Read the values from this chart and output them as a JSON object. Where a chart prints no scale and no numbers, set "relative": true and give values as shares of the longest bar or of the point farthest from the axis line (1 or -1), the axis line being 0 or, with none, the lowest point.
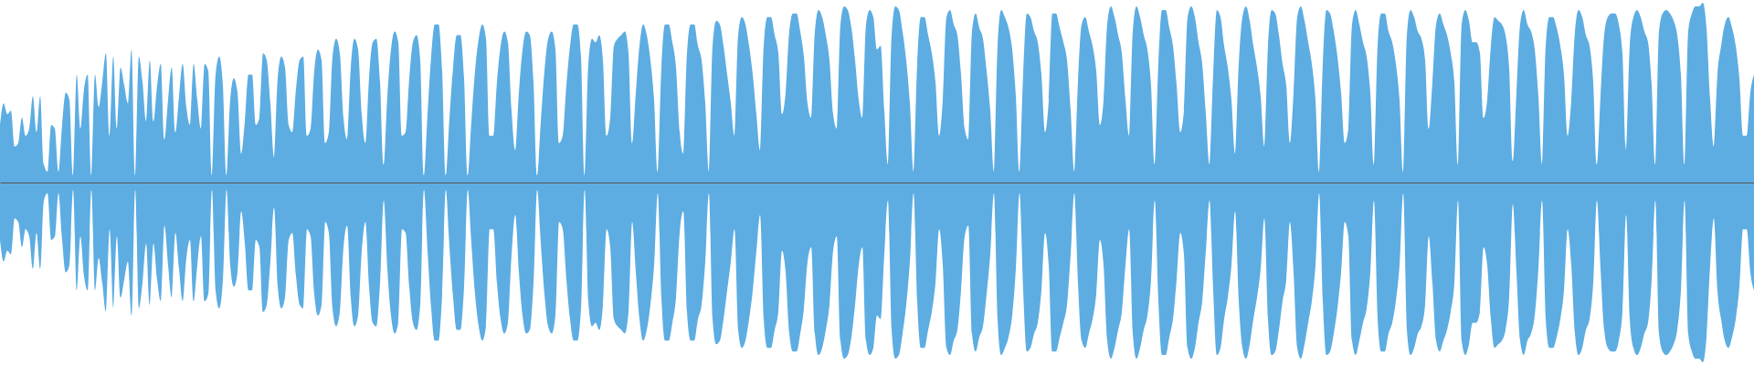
{
  "chart_data": {
    "type": "area",
    "relative": true,
    "categories": [
      null,
      null,
      null,
      null,
      null,
      null,
      null,
      null,
      null,
      null,
      null,
      null,
      null,
      null,
      null,
      null,
      null,
      null,
      null,
      null,
      null,
      null,
      null,
      null,
      null,
      null,
      null,
      null,
      null,
      null,
      null,
      null,
      null,
      null,
      null,
      null,
      null,
      null,
      null,
      null,
      null,
      null,
      null,
      null,
      null,
      null,
      null,
      null,
      null,
      null,
      null,
      null,
      null,
      null,
      null,
      null,
      null,
      null,
      null,
      null,
      null,
      null,
      null,
      null,
      null,
      null,
      null,
      null,
      null,
      null,
      null,
      null,
      null,
      null,
      null,
      null,
      null,
      null,
      null,
      null,
      null,
      null,
      null,
      null,
      null,
      null,
      null,
      null,
      null,
      null,
      null,
      null,
      null,
      null,
      null,
      null,
      null,
      null,
      null,
      null,
      null,
      null,
      null,
      null,
      null,
      null,
      null,
      null,
      null,
      null,
      null,
      null,
      null,
      null,
      null,
      null,
      null,
      null,
      null,
      null,
      null,
      null,
      null,
      null,
      null,
      null,
      null,
      null,
      null,
      null,
      null,
      null,
      null,
      null,
      null,
      null,
      null,
      null,
      null,
      null,
      null,
      null,
      null,
      null,
      null,
      null,
      null,
      null,
      null,
      null,
      null,
      null,
      null,
      null,
      null,
      null,
      null,
      null,
      null,
      null,
      null,
      null,
      null,
      null,
      null,
      null,
      null,
      null,
      null,
      null,
      null,
      null,
      null,
      null,
      null,
      null,
      null,
      null,
      null,
      null,
      null,
      null,
      null,
      null,
      null,
      null,
      null,
      null,
      null,
      null,
      null,
      null,
      null,
      null,
      null,
      null,
      null,
      null,
      null,
      null,
      null,
      null,
      null,
      null,
      null,
      null,
      null,
      null,
      null,
      null,
      null,
      null,
      null,
      null,
      null,
      null,
      null,
      null,
      null,
      null,
      null,
      null,
      null,
      null,
      null,
      null,
      null,
      null,
      null,
      null,
      null,
      null,
      null,
      null,
      null,
      null,
      null,
      null,
      null,
      null,
      null,
      null,
      null,
      null,
      null,
      null,
      null,
      null,
      null,
      null,
      null,
      null,
      null,
      null,
      null,
      null,
      null,
      null,
      null,
      null,
      null,
      null,
      null,
      null,
      null,
      null,
      null,
      null,
      null,
      null,
      null,
      null,
      null,
      null,
      null,
      null,
      null,
      null,
      null,
      null,
      null,
      null,
      null,
      null,
      null,
      null,
      null,
      null,
      null,
      null,
      null,
      null,
      null,
      null,
      null,
      null,
      null,
      null,
      null,
      null,
      null,
      null,
      null,
      null,
      null,
      null,
      null,
      null,
      null,
      null,
      null,
      null,
      null,
      null,
      null,
      null,
      null,
      null,
      null,
      null,
      null,
      null,
      null,
      null,
      null,
      null,
      null,
      null,
      null,
      null,
      null,
      null,
      null,
      null,
      null,
      null,
      null,
      null,
      null,
      null,
      null,
      null,
      null,
      null,
      null,
      null,
      null,
      null,
      null,
      null,
      null,
      null,
      null,
      null,
      null,
      null,
      null,
      null,
      null,
      null,
      null,
      null,
      null,
      null,
      null,
      null,
      null,
      null,
      null,
      null,
      null,
      null,
      null,
      null,
      null,
      null,
      null,
      null,
      null,
      null,
      null,
      null,
      null,
      null,
      null,
      null,
      null,
      null,
      null,
      null,
      null,
      null,
      null,
      null,
      null,
      null,
      null,
      null,
      null,
      null,
      null,
      null,
      null,
      null,
      null,
      null,
      null,
      null,
      null,
      null,
      null,
      null,
      null,
      null,
      null,
      null,
      null,
      null,
      null,
      null,
      null,
      null,
      null,
      null,
      null,
      null,
      null,
      null,
      null,
      null,
      null,
      null,
      null,
      null,
      null,
      null,
      null,
      null,
      null,
      null,
      null,
      null,
      null,
      null,
      null,
      null,
      null,
      null,
      null,
      null,
      null,
      null,
      null,
      null,
      null,
      null,
      null,
      null,
      null,
      null,
      null,
      null,
      null,
      null,
      null,
      null,
      null,
      null,
      null,
      null,
      null,
      null,
      null,
      null,
      null,
      null,
      null,
      null,
      null,
      null,
      null
    ],
    "series": [
      {
        "color": "#5dade2",
        "values": [
          0.32,
          0.44,
          0.38,
          0.4,
          0.2,
          0.22,
          0.36,
          0.26,
          0.3,
          0.48,
          0.28,
          0.48,
          0.1,
          0.06,
          0.32,
          0.3,
          0.06,
          0.32,
          0.5,
          0.46,
          0.04,
          0.6,
          0.3,
          0.52,
          0.6,
          0.04,
          0.6,
          0.42,
          0.56,
          0.72,
          0.26,
          0.7,
          0.3,
          0.64,
          0.54,
          0.44,
          0.74,
          0.04,
          0.7,
          0.56,
          0.34,
          0.68,
          0.34,
          0.54,
          0.66,
          0.24,
          0.46,
          0.64,
          0.28,
          0.48,
          0.66,
          0.42,
          0.32,
          0.66,
          0.46,
          0.3,
          0.66,
          0.62,
          0.04,
          0.6,
          0.7,
          0.54,
          0.04,
          0.46,
          0.58,
          0.5,
          0.16,
          0.34,
          0.6,
          0.6,
          0.32,
          0.36,
          0.72,
          0.68,
          0.44,
          0.14,
          0.58,
          0.7,
          0.64,
          0.32,
          0.28,
          0.52,
          0.68,
          0.7,
          0.26,
          0.3,
          0.62,
          0.74,
          0.68,
          0.22,
          0.28,
          0.7,
          0.8,
          0.72,
          0.36,
          0.24,
          0.64,
          0.8,
          0.74,
          0.38,
          0.22,
          0.58,
          0.78,
          0.8,
          0.56,
          0.1,
          0.48,
          0.74,
          0.84,
          0.78,
          0.26,
          0.28,
          0.58,
          0.78,
          0.82,
          0.68,
          0.04,
          0.38,
          0.7,
          0.88,
          0.88,
          0.62,
          0.04,
          0.36,
          0.64,
          0.82,
          0.82,
          0.58,
          0.04,
          0.34,
          0.62,
          0.8,
          0.88,
          0.8,
          0.26,
          0.26,
          0.56,
          0.76,
          0.84,
          0.78,
          0.4,
          0.18,
          0.5,
          0.74,
          0.84,
          0.82,
          0.56,
          0.04,
          0.34,
          0.62,
          0.8,
          0.84,
          0.74,
          0.22,
          0.26,
          0.54,
          0.76,
          0.88,
          0.88,
          0.7,
          0.04,
          0.66,
          0.8,
          0.78,
          0.82,
          0.68,
          0.26,
          0.36,
          0.76,
          0.8,
          0.82,
          0.84,
          0.72,
          0.22,
          0.5,
          0.76,
          0.88,
          0.82,
          0.68,
          0.46,
          0.06,
          0.64,
          0.88,
          0.88,
          0.78,
          0.64,
          0.28,
          0.16,
          0.72,
          0.88,
          0.88,
          0.76,
          0.68,
          0.44,
          0.06,
          0.76,
          0.9,
          0.88,
          0.76,
          0.6,
          0.44,
          0.26,
          0.82,
          0.92,
          0.88,
          0.76,
          0.6,
          0.38,
          0.18,
          0.76,
          0.92,
          0.92,
          0.82,
          0.72,
          0.38,
          0.5,
          0.84,
          0.94,
          0.94,
          0.84,
          0.7,
          0.44,
          0.36,
          0.84,
          0.96,
          0.92,
          0.82,
          0.68,
          0.38,
          0.3,
          0.88,
          0.98,
          0.96,
          0.86,
          0.68,
          0.46,
          0.36,
          0.88,
          0.96,
          0.92,
          0.74,
          0.76,
          0.4,
          0.1,
          0.82,
          0.98,
          0.96,
          0.84,
          0.68,
          0.44,
          0.06,
          0.66,
          0.92,
          0.92,
          0.82,
          0.72,
          0.56,
          0.26,
          0.46,
          0.92,
          0.96,
          0.88,
          0.82,
          0.6,
          0.3,
          0.24,
          0.84,
          0.94,
          0.86,
          0.8,
          0.62,
          0.4,
          0.06,
          0.76,
          0.96,
          0.92,
          0.86,
          0.74,
          0.48,
          0.06,
          0.6,
          0.94,
          0.92,
          0.84,
          0.78,
          0.6,
          0.28,
          0.46,
          0.94,
          0.94,
          0.86,
          0.78,
          0.68,
          0.4,
          0.06,
          0.56,
          0.88,
          0.92,
          0.84,
          0.76,
          0.62,
          0.32,
          0.46,
          0.88,
          0.98,
          0.92,
          0.82,
          0.72,
          0.46,
          0.26,
          0.84,
          0.98,
          0.92,
          0.82,
          0.74,
          0.54,
          0.1,
          0.66,
          0.96,
          0.96,
          0.86,
          0.76,
          0.54,
          0.28,
          0.4,
          0.92,
          0.98,
          0.92,
          0.78,
          0.66,
          0.38,
          0.1,
          0.6,
          0.96,
          0.92,
          0.76,
          0.64,
          0.46,
          0.16,
          0.66,
          0.92,
          0.98,
          0.9,
          0.76,
          0.64,
          0.48,
          0.2,
          0.76,
          0.96,
          0.94,
          0.82,
          0.66,
          0.54,
          0.22,
          0.5,
          0.92,
          0.98,
          0.9,
          0.78,
          0.66,
          0.46,
          0.06,
          0.66,
          0.96,
          0.94,
          0.84,
          0.7,
          0.5,
          0.22,
          0.3,
          0.88,
          0.96,
          0.88,
          0.78,
          0.7,
          0.5,
          0.1,
          0.76,
          0.94,
          0.94,
          0.84,
          0.78,
          0.66,
          0.46,
          0.06,
          0.82,
          0.96,
          0.92,
          0.84,
          0.8,
          0.68,
          0.3,
          0.56,
          0.88,
          0.94,
          0.88,
          0.82,
          0.72,
          0.56,
          0.1,
          0.88,
          0.96,
          0.9,
          0.78,
          0.78,
          0.72,
          0.36,
          0.46,
          0.76,
          0.92,
          0.9,
          0.88,
          0.82,
          0.64,
          0.12,
          0.5,
          0.88,
          0.96,
          0.88,
          0.84,
          0.74,
          0.48,
          0.1,
          0.76,
          0.92,
          0.92,
          0.86,
          0.76,
          0.6,
          0.26,
          0.46,
          0.84,
          0.96,
          0.92,
          0.82,
          0.76,
          0.56,
          0.1,
          0.48,
          0.82,
          0.92,
          0.94,
          0.94,
          0.88,
          0.72,
          0.18,
          0.76,
          0.92,
          0.96,
          0.92,
          0.84,
          0.78,
          0.54,
          0.1,
          0.84,
          0.94,
          0.96,
          0.94,
          0.9,
          0.82,
          0.6,
          0.1,
          0.84,
          0.94,
          0.98,
          0.98,
          1,
          0.86,
          0.46,
          0.2,
          0.6,
          0.76,
          0.88,
          0.92,
          0.86,
          0.76,
          0.58,
          0.26,
          0.26,
          0.5,
          0.6
        ]
      },
      {
        "color": "#5dade2",
        "values": [
          -0.32,
          -0.44,
          -0.38,
          -0.4,
          -0.2,
          -0.22,
          -0.36,
          -0.26,
          -0.3,
          -0.48,
          -0.28,
          -0.48,
          -0.1,
          -0.06,
          -0.32,
          -0.3,
          -0.06,
          -0.32,
          -0.5,
          -0.46,
          -0.04,
          -0.6,
          -0.3,
          -0.52,
          -0.6,
          -0.04,
          -0.6,
          -0.42,
          -0.56,
          -0.72,
          -0.26,
          -0.7,
          -0.3,
          -0.64,
          -0.54,
          -0.44,
          -0.74,
          -0.04,
          -0.7,
          -0.56,
          -0.34,
          -0.68,
          -0.34,
          -0.54,
          -0.66,
          -0.24,
          -0.46,
          -0.64,
          -0.28,
          -0.48,
          -0.66,
          -0.42,
          -0.32,
          -0.66,
          -0.46,
          -0.3,
          -0.66,
          -0.62,
          -0.04,
          -0.6,
          -0.7,
          -0.54,
          -0.04,
          -0.46,
          -0.58,
          -0.5,
          -0.16,
          -0.34,
          -0.6,
          -0.6,
          -0.32,
          -0.36,
          -0.72,
          -0.68,
          -0.44,
          -0.14,
          -0.58,
          -0.7,
          -0.64,
          -0.32,
          -0.28,
          -0.52,
          -0.68,
          -0.7,
          -0.26,
          -0.3,
          -0.62,
          -0.74,
          -0.68,
          -0.22,
          -0.28,
          -0.7,
          -0.8,
          -0.72,
          -0.36,
          -0.24,
          -0.64,
          -0.8,
          -0.74,
          -0.38,
          -0.22,
          -0.58,
          -0.78,
          -0.8,
          -0.56,
          -0.1,
          -0.48,
          -0.74,
          -0.84,
          -0.78,
          -0.26,
          -0.28,
          -0.58,
          -0.78,
          -0.82,
          -0.68,
          -0.04,
          -0.38,
          -0.7,
          -0.88,
          -0.88,
          -0.62,
          -0.04,
          -0.36,
          -0.64,
          -0.82,
          -0.82,
          -0.58,
          -0.04,
          -0.34,
          -0.62,
          -0.8,
          -0.88,
          -0.8,
          -0.26,
          -0.26,
          -0.56,
          -0.76,
          -0.84,
          -0.78,
          -0.4,
          -0.18,
          -0.5,
          -0.74,
          -0.84,
          -0.82,
          -0.56,
          -0.04,
          -0.34,
          -0.62,
          -0.8,
          -0.84,
          -0.74,
          -0.22,
          -0.26,
          -0.54,
          -0.76,
          -0.88,
          -0.88,
          -0.7,
          -0.04,
          -0.66,
          -0.8,
          -0.78,
          -0.82,
          -0.68,
          -0.26,
          -0.36,
          -0.76,
          -0.8,
          -0.82,
          -0.84,
          -0.72,
          -0.22,
          -0.5,
          -0.76,
          -0.88,
          -0.82,
          -0.68,
          -0.46,
          -0.06,
          -0.64,
          -0.88,
          -0.88,
          -0.78,
          -0.64,
          -0.28,
          -0.16,
          -0.72,
          -0.88,
          -0.88,
          -0.76,
          -0.68,
          -0.44,
          -0.06,
          -0.76,
          -0.9,
          -0.88,
          -0.76,
          -0.6,
          -0.44,
          -0.26,
          -0.82,
          -0.92,
          -0.88,
          -0.76,
          -0.6,
          -0.38,
          -0.18,
          -0.76,
          -0.92,
          -0.92,
          -0.82,
          -0.72,
          -0.38,
          -0.5,
          -0.84,
          -0.94,
          -0.94,
          -0.84,
          -0.7,
          -0.44,
          -0.36,
          -0.84,
          -0.96,
          -0.92,
          -0.82,
          -0.68,
          -0.38,
          -0.3,
          -0.88,
          -0.98,
          -0.96,
          -0.86,
          -0.68,
          -0.46,
          -0.36,
          -0.88,
          -0.96,
          -0.92,
          -0.74,
          -0.76,
          -0.4,
          -0.1,
          -0.82,
          -0.98,
          -0.96,
          -0.84,
          -0.68,
          -0.44,
          -0.06,
          -0.66,
          -0.92,
          -0.92,
          -0.82,
          -0.72,
          -0.56,
          -0.26,
          -0.46,
          -0.92,
          -0.96,
          -0.88,
          -0.82,
          -0.6,
          -0.3,
          -0.24,
          -0.84,
          -0.94,
          -0.86,
          -0.8,
          -0.62,
          -0.4,
          -0.06,
          -0.76,
          -0.96,
          -0.92,
          -0.86,
          -0.74,
          -0.48,
          -0.06,
          -0.6,
          -0.94,
          -0.92,
          -0.84,
          -0.78,
          -0.6,
          -0.28,
          -0.46,
          -0.94,
          -0.94,
          -0.86,
          -0.78,
          -0.68,
          -0.4,
          -0.06,
          -0.56,
          -0.88,
          -0.92,
          -0.84,
          -0.76,
          -0.62,
          -0.32,
          -0.46,
          -0.88,
          -0.98,
          -0.92,
          -0.82,
          -0.72,
          -0.46,
          -0.26,
          -0.84,
          -0.98,
          -0.92,
          -0.82,
          -0.74,
          -0.54,
          -0.1,
          -0.66,
          -0.96,
          -0.96,
          -0.86,
          -0.76,
          -0.54,
          -0.28,
          -0.4,
          -0.92,
          -0.98,
          -0.92,
          -0.78,
          -0.66,
          -0.38,
          -0.1,
          -0.6,
          -0.96,
          -0.92,
          -0.76,
          -0.64,
          -0.46,
          -0.16,
          -0.66,
          -0.92,
          -0.98,
          -0.9,
          -0.76,
          -0.64,
          -0.48,
          -0.2,
          -0.76,
          -0.96,
          -0.94,
          -0.82,
          -0.66,
          -0.54,
          -0.22,
          -0.5,
          -0.92,
          -0.98,
          -0.9,
          -0.78,
          -0.66,
          -0.46,
          -0.06,
          -0.66,
          -0.96,
          -0.94,
          -0.84,
          -0.7,
          -0.5,
          -0.22,
          -0.3,
          -0.88,
          -0.96,
          -0.88,
          -0.78,
          -0.7,
          -0.5,
          -0.1,
          -0.76,
          -0.94,
          -0.94,
          -0.84,
          -0.78,
          -0.66,
          -0.46,
          -0.06,
          -0.82,
          -0.96,
          -0.92,
          -0.84,
          -0.8,
          -0.68,
          -0.3,
          -0.56,
          -0.88,
          -0.94,
          -0.88,
          -0.82,
          -0.72,
          -0.56,
          -0.1,
          -0.88,
          -0.96,
          -0.9,
          -0.78,
          -0.78,
          -0.72,
          -0.36,
          -0.46,
          -0.76,
          -0.92,
          -0.9,
          -0.88,
          -0.82,
          -0.64,
          -0.12,
          -0.5,
          -0.88,
          -0.96,
          -0.88,
          -0.84,
          -0.74,
          -0.48,
          -0.1,
          -0.76,
          -0.92,
          -0.92,
          -0.86,
          -0.76,
          -0.6,
          -0.26,
          -0.46,
          -0.84,
          -0.96,
          -0.92,
          -0.82,
          -0.76,
          -0.56,
          -0.1,
          -0.48,
          -0.82,
          -0.92,
          -0.94,
          -0.94,
          -0.88,
          -0.72,
          -0.18,
          -0.76,
          -0.92,
          -0.96,
          -0.92,
          -0.84,
          -0.78,
          -0.54,
          -0.1,
          -0.84,
          -0.94,
          -0.96,
          -0.94,
          -0.9,
          -0.82,
          -0.6,
          -0.1,
          -0.84,
          -0.94,
          -0.98,
          -0.98,
          -1,
          -0.86,
          -0.46,
          -0.2,
          -0.6,
          -0.76,
          -0.88,
          -0.92,
          -0.86,
          -0.76,
          -0.58,
          -0.26,
          -0.26,
          -0.5,
          -0.6
        ]
      }
    ]
  }
}
